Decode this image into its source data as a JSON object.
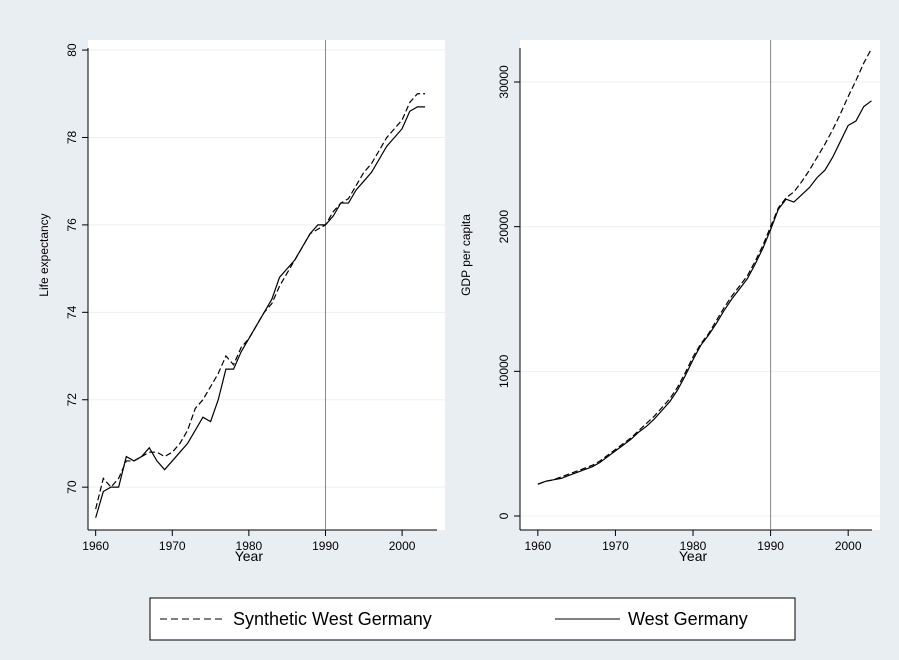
{
  "chart_data": [
    {
      "type": "line",
      "xlabel": "Year",
      "ylabel": "Life expectancy",
      "x": [
        1960,
        1961,
        1962,
        1963,
        1964,
        1965,
        1966,
        1967,
        1968,
        1969,
        1970,
        1971,
        1972,
        1973,
        1974,
        1975,
        1976,
        1977,
        1978,
        1979,
        1980,
        1981,
        1982,
        1983,
        1984,
        1985,
        1986,
        1987,
        1988,
        1989,
        1990,
        1991,
        1992,
        1993,
        1994,
        1995,
        1996,
        1997,
        1998,
        1999,
        2000,
        2001,
        2002,
        2003
      ],
      "series": [
        {
          "name": "Synthetic West Germany",
          "color": "#000000",
          "dashed": true,
          "values": [
            69.5,
            70.2,
            70.0,
            70.2,
            70.6,
            70.6,
            70.7,
            70.8,
            70.8,
            70.7,
            70.8,
            71.0,
            71.3,
            71.8,
            72.0,
            72.3,
            72.6,
            73.0,
            72.8,
            73.2,
            73.4,
            73.7,
            74.0,
            74.2,
            74.6,
            74.9,
            75.2,
            75.5,
            75.8,
            75.9,
            76.0,
            76.3,
            76.5,
            76.6,
            76.9,
            77.2,
            77.4,
            77.7,
            78.0,
            78.2,
            78.4,
            78.8,
            79.0,
            79.0
          ]
        },
        {
          "name": "West Germany",
          "color": "#000000",
          "dashed": false,
          "values": [
            69.3,
            69.9,
            70.0,
            70.0,
            70.7,
            70.6,
            70.7,
            70.9,
            70.6,
            70.4,
            70.6,
            70.8,
            71.0,
            71.3,
            71.6,
            71.5,
            72.0,
            72.7,
            72.7,
            73.1,
            73.4,
            73.7,
            74.0,
            74.3,
            74.8,
            75.0,
            75.2,
            75.5,
            75.8,
            76.0,
            76.0,
            76.2,
            76.5,
            76.5,
            76.8,
            77.0,
            77.2,
            77.5,
            77.8,
            78.0,
            78.2,
            78.6,
            78.7,
            78.7
          ]
        }
      ],
      "xlim": [
        1959,
        2005.6
      ],
      "xticks": [
        1960,
        1970,
        1980,
        1990,
        2000
      ],
      "ylim": [
        69.02,
        80.23
      ],
      "yticks": [
        70,
        72,
        74,
        76,
        78,
        80
      ],
      "grid": true,
      "vline": 1990
    },
    {
      "type": "line",
      "xlabel": "Year",
      "ylabel": "GDP per capita",
      "x": [
        1960,
        1961,
        1962,
        1963,
        1964,
        1965,
        1966,
        1967,
        1968,
        1969,
        1970,
        1971,
        1972,
        1973,
        1974,
        1975,
        1976,
        1977,
        1978,
        1979,
        1980,
        1981,
        1982,
        1983,
        1984,
        1985,
        1986,
        1987,
        1988,
        1989,
        1990,
        1991,
        1992,
        1993,
        1994,
        1995,
        1996,
        1997,
        1998,
        1999,
        2000,
        2001,
        2002,
        2003
      ],
      "series": [
        {
          "name": "Synthetic West Germany",
          "color": "#000000",
          "dashed": true,
          "values": [
            2200,
            2400,
            2500,
            2700,
            2900,
            3100,
            3300,
            3500,
            3800,
            4200,
            4600,
            5000,
            5400,
            5900,
            6400,
            6900,
            7500,
            8100,
            8900,
            9900,
            11000,
            11900,
            12600,
            13500,
            14400,
            15200,
            15900,
            16600,
            17600,
            18700,
            20000,
            21300,
            22000,
            22400,
            23100,
            23900,
            24800,
            25700,
            26700,
            27800,
            29000,
            30100,
            31300,
            32300
          ]
        },
        {
          "name": "West Germany",
          "color": "#000000",
          "dashed": false,
          "values": [
            2200,
            2400,
            2500,
            2600,
            2800,
            3000,
            3200,
            3400,
            3700,
            4100,
            4500,
            4900,
            5300,
            5800,
            6200,
            6700,
            7300,
            7900,
            8700,
            9700,
            10800,
            11800,
            12500,
            13300,
            14200,
            15000,
            15700,
            16400,
            17400,
            18500,
            19800,
            21200,
            21900,
            21700,
            22200,
            22700,
            23400,
            23900,
            24800,
            25900,
            27000,
            27300,
            28300,
            28700
          ]
        }
      ],
      "xlim": [
        1957.7,
        2004.1
      ],
      "xticks": [
        1960,
        1970,
        1980,
        1990,
        2000
      ],
      "ylim": [
        -968,
        32903
      ],
      "yticks": [
        0,
        10000,
        20000,
        30000
      ],
      "grid": true,
      "vline": 1990
    }
  ]
}
